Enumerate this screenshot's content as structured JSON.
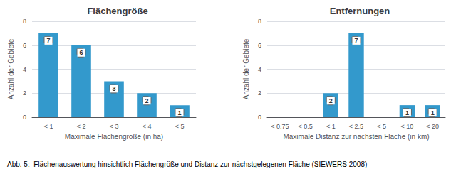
{
  "chart_data": [
    {
      "type": "bar",
      "title": "Flächengröße",
      "categories": [
        "< 1",
        "< 2",
        "< 3",
        "< 4",
        "< 5"
      ],
      "values": [
        7,
        6,
        3,
        2,
        1
      ],
      "xlabel": "Maximale Flächengröße (in ha)",
      "ylabel": "Anzahl der Gebiete",
      "ylim": [
        0,
        8
      ],
      "yticks": [
        0,
        2,
        4,
        6,
        8
      ],
      "color": "#3399cc",
      "grid": true,
      "data_labels": true
    },
    {
      "type": "bar",
      "title": "Entfernungen",
      "categories": [
        "< 0.75",
        "< 0.5",
        "< 1",
        "< 2.5",
        "< 5",
        "< 10",
        "< 20"
      ],
      "values": [
        0,
        0,
        2,
        7,
        0,
        1,
        1
      ],
      "value_labels": [
        null,
        null,
        "2",
        "7",
        null,
        "1",
        "1"
      ],
      "xlabel": "Maximale Distanz zur nächsten Fläche (in km)",
      "ylabel": "Anzahl der Gebiete",
      "ylim": [
        0,
        8
      ],
      "yticks": [
        0,
        2,
        4,
        6,
        8
      ],
      "color": "#3399cc",
      "grid": true,
      "data_labels": true
    }
  ],
  "caption": "Abb. 5:  Flächenauswertung hinsichtlich Flächengröße und Distanz zur nächstgelegenen Fläche (SIEWERS 2008)"
}
